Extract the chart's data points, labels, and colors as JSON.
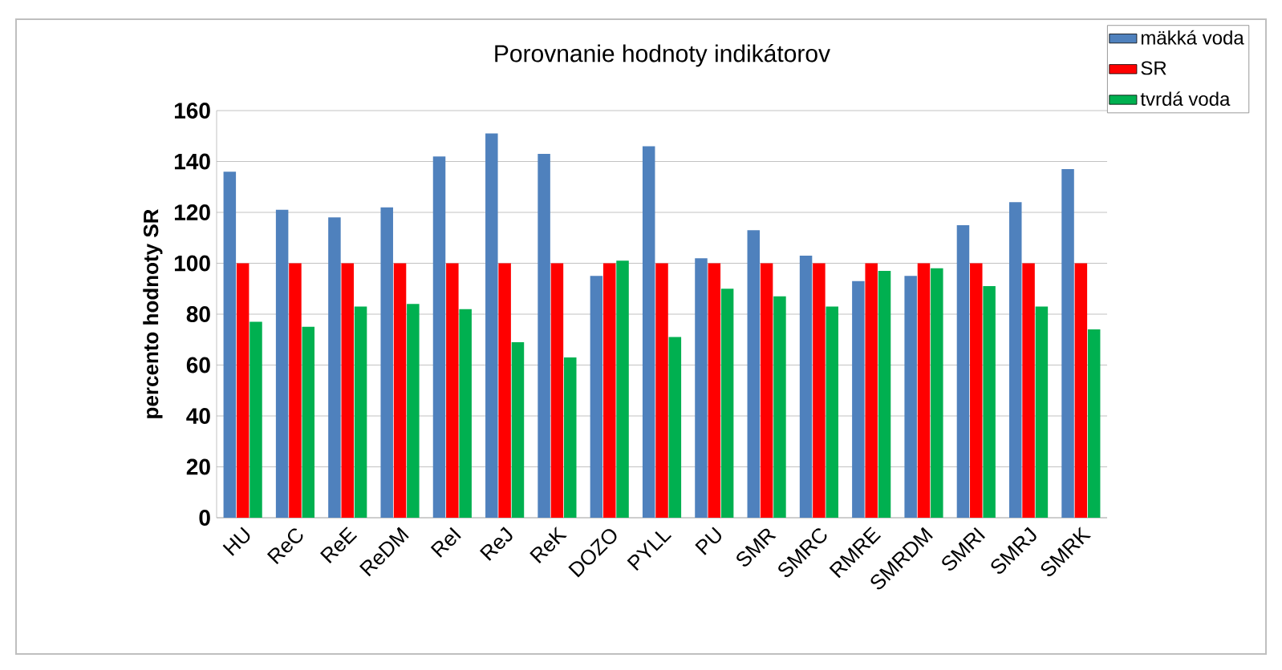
{
  "chart_data": {
    "type": "bar",
    "title": "Porovnanie hodnoty indikátorov",
    "ylabel": "percento hodnoty SR",
    "categories": [
      "HU",
      "ReC",
      "ReE",
      "ReDM",
      "ReI",
      "ReJ",
      "ReK",
      "DOZO",
      "PYLL",
      "PU",
      "SMR",
      "SMRC",
      "RMRE",
      "SMRDM",
      "SMRI",
      "SMRJ",
      "SMRK"
    ],
    "series": [
      {
        "name": "mäkká voda",
        "color": "#4f81bd",
        "values": [
          136,
          121,
          118,
          122,
          142,
          151,
          143,
          95,
          146,
          102,
          113,
          103,
          93,
          95,
          115,
          124,
          137
        ]
      },
      {
        "name": "SR",
        "color": "#ff0000",
        "values": [
          100,
          100,
          100,
          100,
          100,
          100,
          100,
          100,
          100,
          100,
          100,
          100,
          100,
          100,
          100,
          100,
          100
        ]
      },
      {
        "name": "tvrdá voda",
        "color": "#00b050",
        "values": [
          77,
          75,
          83,
          84,
          82,
          69,
          63,
          101,
          71,
          90,
          87,
          83,
          97,
          98,
          91,
          83,
          74
        ]
      }
    ],
    "ylim": [
      0,
      160
    ],
    "yticks": [
      0,
      20,
      40,
      60,
      80,
      100,
      120,
      140,
      160
    ],
    "grid": "y",
    "legend": "top right"
  }
}
